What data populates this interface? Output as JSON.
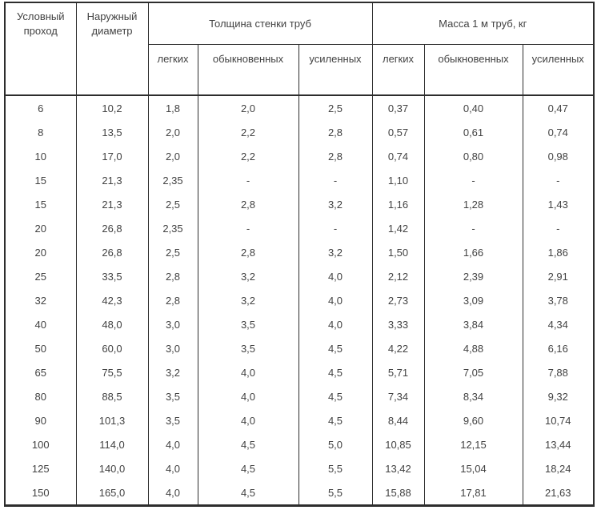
{
  "table": {
    "title_semantic": "Толщина стенки и масса водогазопроводных труб",
    "header": {
      "conditional_pass": "Условный проход",
      "outer_diameter": "Наружный диаметр",
      "group_thickness": "Толщина стенки труб",
      "group_mass": "Масса 1 м труб, кг",
      "sub": [
        "легких",
        "обыкновенных",
        "усиленных",
        "легких",
        "обыкновенных",
        "усиленных"
      ]
    },
    "rows": [
      [
        "6",
        "10,2",
        "1,8",
        "2,0",
        "2,5",
        "0,37",
        "0,40",
        "0,47"
      ],
      [
        "8",
        "13,5",
        "2,0",
        "2,2",
        "2,8",
        "0,57",
        "0,61",
        "0,74"
      ],
      [
        "10",
        "17,0",
        "2,0",
        "2,2",
        "2,8",
        "0,74",
        "0,80",
        "0,98"
      ],
      [
        "15",
        "21,3",
        "2,35",
        "-",
        "-",
        "1,10",
        "-",
        "-"
      ],
      [
        "15",
        "21,3",
        "2,5",
        "2,8",
        "3,2",
        "1,16",
        "1,28",
        "1,43"
      ],
      [
        "20",
        "26,8",
        "2,35",
        "-",
        "-",
        "1,42",
        "-",
        "-"
      ],
      [
        "20",
        "26,8",
        "2,5",
        "2,8",
        "3,2",
        "1,50",
        "1,66",
        "1,86"
      ],
      [
        "25",
        "33,5",
        "2,8",
        "3,2",
        "4,0",
        "2,12",
        "2,39",
        "2,91"
      ],
      [
        "32",
        "42,3",
        "2,8",
        "3,2",
        "4,0",
        "2,73",
        "3,09",
        "3,78"
      ],
      [
        "40",
        "48,0",
        "3,0",
        "3,5",
        "4,0",
        "3,33",
        "3,84",
        "4,34"
      ],
      [
        "50",
        "60,0",
        "3,0",
        "3,5",
        "4,5",
        "4,22",
        "4,88",
        "6,16"
      ],
      [
        "65",
        "75,5",
        "3,2",
        "4,0",
        "4,5",
        "5,71",
        "7,05",
        "7,88"
      ],
      [
        "80",
        "88,5",
        "3,5",
        "4,0",
        "4,5",
        "7,34",
        "8,34",
        "9,32"
      ],
      [
        "90",
        "101,3",
        "3,5",
        "4,0",
        "4,5",
        "8,44",
        "9,60",
        "10,74"
      ],
      [
        "100",
        "114,0",
        "4,0",
        "4,5",
        "5,0",
        "10,85",
        "12,15",
        "13,44"
      ],
      [
        "125",
        "140,0",
        "4,0",
        "4,5",
        "5,5",
        "13,42",
        "15,04",
        "18,24"
      ],
      [
        "150",
        "165,0",
        "4,0",
        "4,5",
        "5,5",
        "15,88",
        "17,81",
        "21,63"
      ]
    ],
    "colors": {
      "border": "#2d2d2d",
      "text": "#424242",
      "background": "#ffffff"
    }
  }
}
